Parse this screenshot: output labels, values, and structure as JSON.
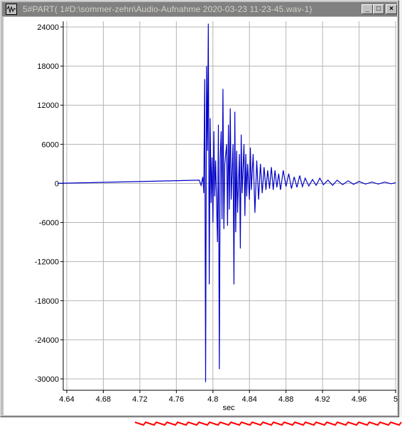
{
  "window": {
    "title": "5#PART( 1#D:\\sommer-zehn\\Audio-Aufnahme 2020-03-23 11-23-45.wav-1)",
    "icon": "waveform-app-icon",
    "buttons": {
      "minimize": "_",
      "maximize": "□",
      "close": "×"
    }
  },
  "colors": {
    "waveform": "#0000c8",
    "grid": "#b4b4b4",
    "titlebar": "#808080",
    "tail": "#008080",
    "strip": "#ff0000"
  },
  "chart_data": {
    "type": "line",
    "xlabel": "sec",
    "xlim": [
      4.63,
      5.0
    ],
    "ylim": [
      -31000,
      26000
    ],
    "xticks": [
      4.64,
      4.68,
      4.72,
      4.76,
      4.8,
      4.84,
      4.88,
      4.92,
      4.96,
      5
    ],
    "xtick_labels": [
      "4.64",
      "4.68",
      "4.72",
      "4.76",
      "4.8",
      "4.84",
      "4.88",
      "4.92",
      "4.96",
      "5"
    ],
    "yticks": [
      24000,
      18000,
      12000,
      6000,
      0,
      -6000,
      -12000,
      -18000,
      -24000,
      -30000
    ],
    "ytick_labels": [
      "24000",
      "18000",
      "12000",
      "6000",
      "0",
      "-6000",
      "-12000",
      "-18000",
      "-24000",
      "-30000"
    ],
    "grid": true,
    "series": [
      {
        "values_x": [
          4.63,
          4.785,
          4.787,
          4.789,
          4.79,
          4.791,
          4.792,
          4.793,
          4.794,
          4.795,
          4.796,
          4.797,
          4.798,
          4.799,
          4.8,
          4.801,
          4.802,
          4.803,
          4.805,
          4.806,
          4.807,
          4.808,
          4.809,
          4.81,
          4.811,
          4.812,
          4.813,
          4.815,
          4.816,
          4.817,
          4.818,
          4.819,
          4.82,
          4.822,
          4.823,
          4.824,
          4.825,
          4.826,
          4.827,
          4.829,
          4.83,
          4.831,
          4.832,
          4.834,
          4.835,
          4.836,
          4.837,
          4.838,
          4.84,
          4.841,
          4.842,
          4.844,
          4.846,
          4.848,
          4.85,
          4.852,
          4.854,
          4.856,
          4.858,
          4.86,
          4.862,
          4.864,
          4.866,
          4.868,
          4.87,
          4.872,
          4.874,
          4.877,
          4.88,
          4.883,
          4.886,
          4.889,
          4.892,
          4.895,
          4.898,
          4.901,
          4.905,
          4.909,
          4.913,
          4.917,
          4.921,
          4.926,
          4.931,
          4.936,
          4.942,
          4.948,
          4.954,
          4.96,
          4.967,
          4.974,
          4.981,
          4.988,
          4.995,
          5.0
        ],
        "values_y": [
          0,
          500,
          -300,
          1000,
          -1500,
          16000,
          -30500,
          18000,
          5000,
          24500,
          -15500,
          10000,
          -3000,
          4000,
          -6000,
          8000,
          -2000,
          3500,
          -9000,
          9000,
          -28500,
          4000,
          8000,
          -5500,
          14500,
          -7000,
          3000,
          6000,
          -6500,
          9000,
          -4000,
          11500,
          -2500,
          6000,
          -15500,
          11000,
          -7500,
          5000,
          -4500,
          4500,
          -10000,
          7500,
          -1500,
          6000,
          -5000,
          4500,
          -2000,
          3000,
          -2500,
          5500,
          -1000,
          4500,
          -4500,
          3500,
          -2500,
          3000,
          -1500,
          2500,
          -1000,
          2000,
          -800,
          2500,
          -1000,
          2000,
          -600,
          1500,
          -1000,
          2000,
          -500,
          1500,
          -800,
          1000,
          -600,
          1200,
          -500,
          800,
          -400,
          600,
          -300,
          800,
          -200,
          500,
          -300,
          500,
          -200,
          400,
          -150,
          300,
          -100,
          200,
          -100,
          200,
          -50,
          100
        ]
      }
    ]
  }
}
